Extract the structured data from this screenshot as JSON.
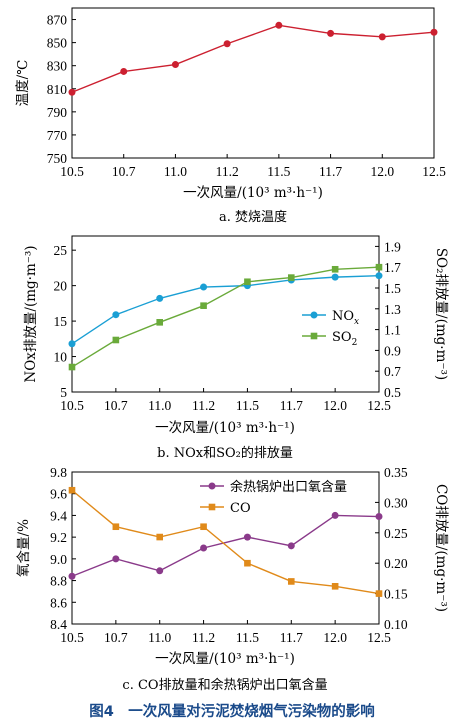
{
  "figure_title": "图4　一次风量对污泥焚烧烟气污染物的影响",
  "chart_data": [
    {
      "type": "line",
      "caption": "a. 焚烧温度",
      "xlabel": "一次风量/(10³ m³·h⁻¹)",
      "ylabel": "温度/℃",
      "x": [
        10.5,
        10.7,
        11.0,
        11.2,
        11.5,
        11.7,
        12.0,
        12.5
      ],
      "xticks": [
        "10.5",
        "10.7",
        "11.0",
        "11.2",
        "11.5",
        "11.7",
        "12.0",
        "12.5"
      ],
      "ylim": [
        750,
        880
      ],
      "yticks": [
        750,
        770,
        790,
        810,
        830,
        850,
        870
      ],
      "series": [
        {
          "values": [
            807,
            825,
            831,
            849,
            865,
            858,
            855,
            859
          ],
          "color": "#cc2030",
          "marker": "circle",
          "axis": "left"
        }
      ],
      "legend": "none",
      "grid": false
    },
    {
      "type": "line",
      "caption": "b. NOx和SO₂的排放量",
      "xlabel": "一次风量/(10³ m³·h⁻¹)",
      "ylabel": "NOx排放量/(mg·m⁻³)",
      "ylabel_right": "SO₂排放量/(mg·m⁻³)",
      "x": [
        10.5,
        10.7,
        11.0,
        11.2,
        11.5,
        11.7,
        12.0,
        12.5
      ],
      "xticks": [
        "10.5",
        "10.7",
        "11.0",
        "11.2",
        "11.5",
        "11.7",
        "12.0",
        "12.5"
      ],
      "ylim": [
        5,
        27
      ],
      "yticks": [
        5,
        10,
        15,
        20,
        25
      ],
      "ylim_right": [
        0.5,
        2.0
      ],
      "yticks_right": [
        0.5,
        0.7,
        0.9,
        1.1,
        1.3,
        1.5,
        1.7,
        1.9
      ],
      "series": [
        {
          "name": "NOx",
          "values": [
            11.8,
            15.9,
            18.2,
            19.8,
            20.0,
            20.8,
            21.2,
            21.4
          ],
          "color": "#1a9fd4",
          "marker": "circle",
          "axis": "left"
        },
        {
          "name": "SO₂",
          "values": [
            0.74,
            1.0,
            1.17,
            1.33,
            1.56,
            1.6,
            1.68,
            1.7
          ],
          "color": "#6aaa3a",
          "marker": "square",
          "axis": "right"
        }
      ],
      "legend": "center-right",
      "grid": false
    },
    {
      "type": "line",
      "caption": "c. CO排放量和余热锅炉出口氧含量",
      "xlabel": "一次风量/(10³ m³·h⁻¹)",
      "ylabel": "氧含量/%",
      "ylabel_right": "CO排放量/(mg·m⁻³)",
      "x": [
        10.5,
        10.7,
        11.0,
        11.2,
        11.5,
        11.7,
        12.0,
        12.5
      ],
      "xticks": [
        "10.5",
        "10.7",
        "11.0",
        "11.2",
        "11.5",
        "11.7",
        "12.0",
        "12.5"
      ],
      "ylim": [
        8.4,
        9.8
      ],
      "yticks": [
        8.4,
        8.6,
        8.8,
        9.0,
        9.2,
        9.4,
        9.6,
        9.8
      ],
      "ylim_right": [
        0.1,
        0.35
      ],
      "yticks_right": [
        0.1,
        0.15,
        0.2,
        0.25,
        0.3,
        0.35
      ],
      "series": [
        {
          "name": "余热锅炉出口氧含量",
          "values": [
            8.84,
            9.0,
            8.89,
            9.1,
            9.2,
            9.12,
            9.4,
            9.39
          ],
          "color": "#8a3a8a",
          "marker": "circle",
          "axis": "left"
        },
        {
          "name": "CO",
          "values": [
            0.32,
            0.26,
            0.243,
            0.26,
            0.2,
            0.17,
            0.162,
            0.15
          ],
          "color": "#e08a1a",
          "marker": "square",
          "axis": "right"
        }
      ],
      "legend": "top-right",
      "grid": false
    }
  ]
}
